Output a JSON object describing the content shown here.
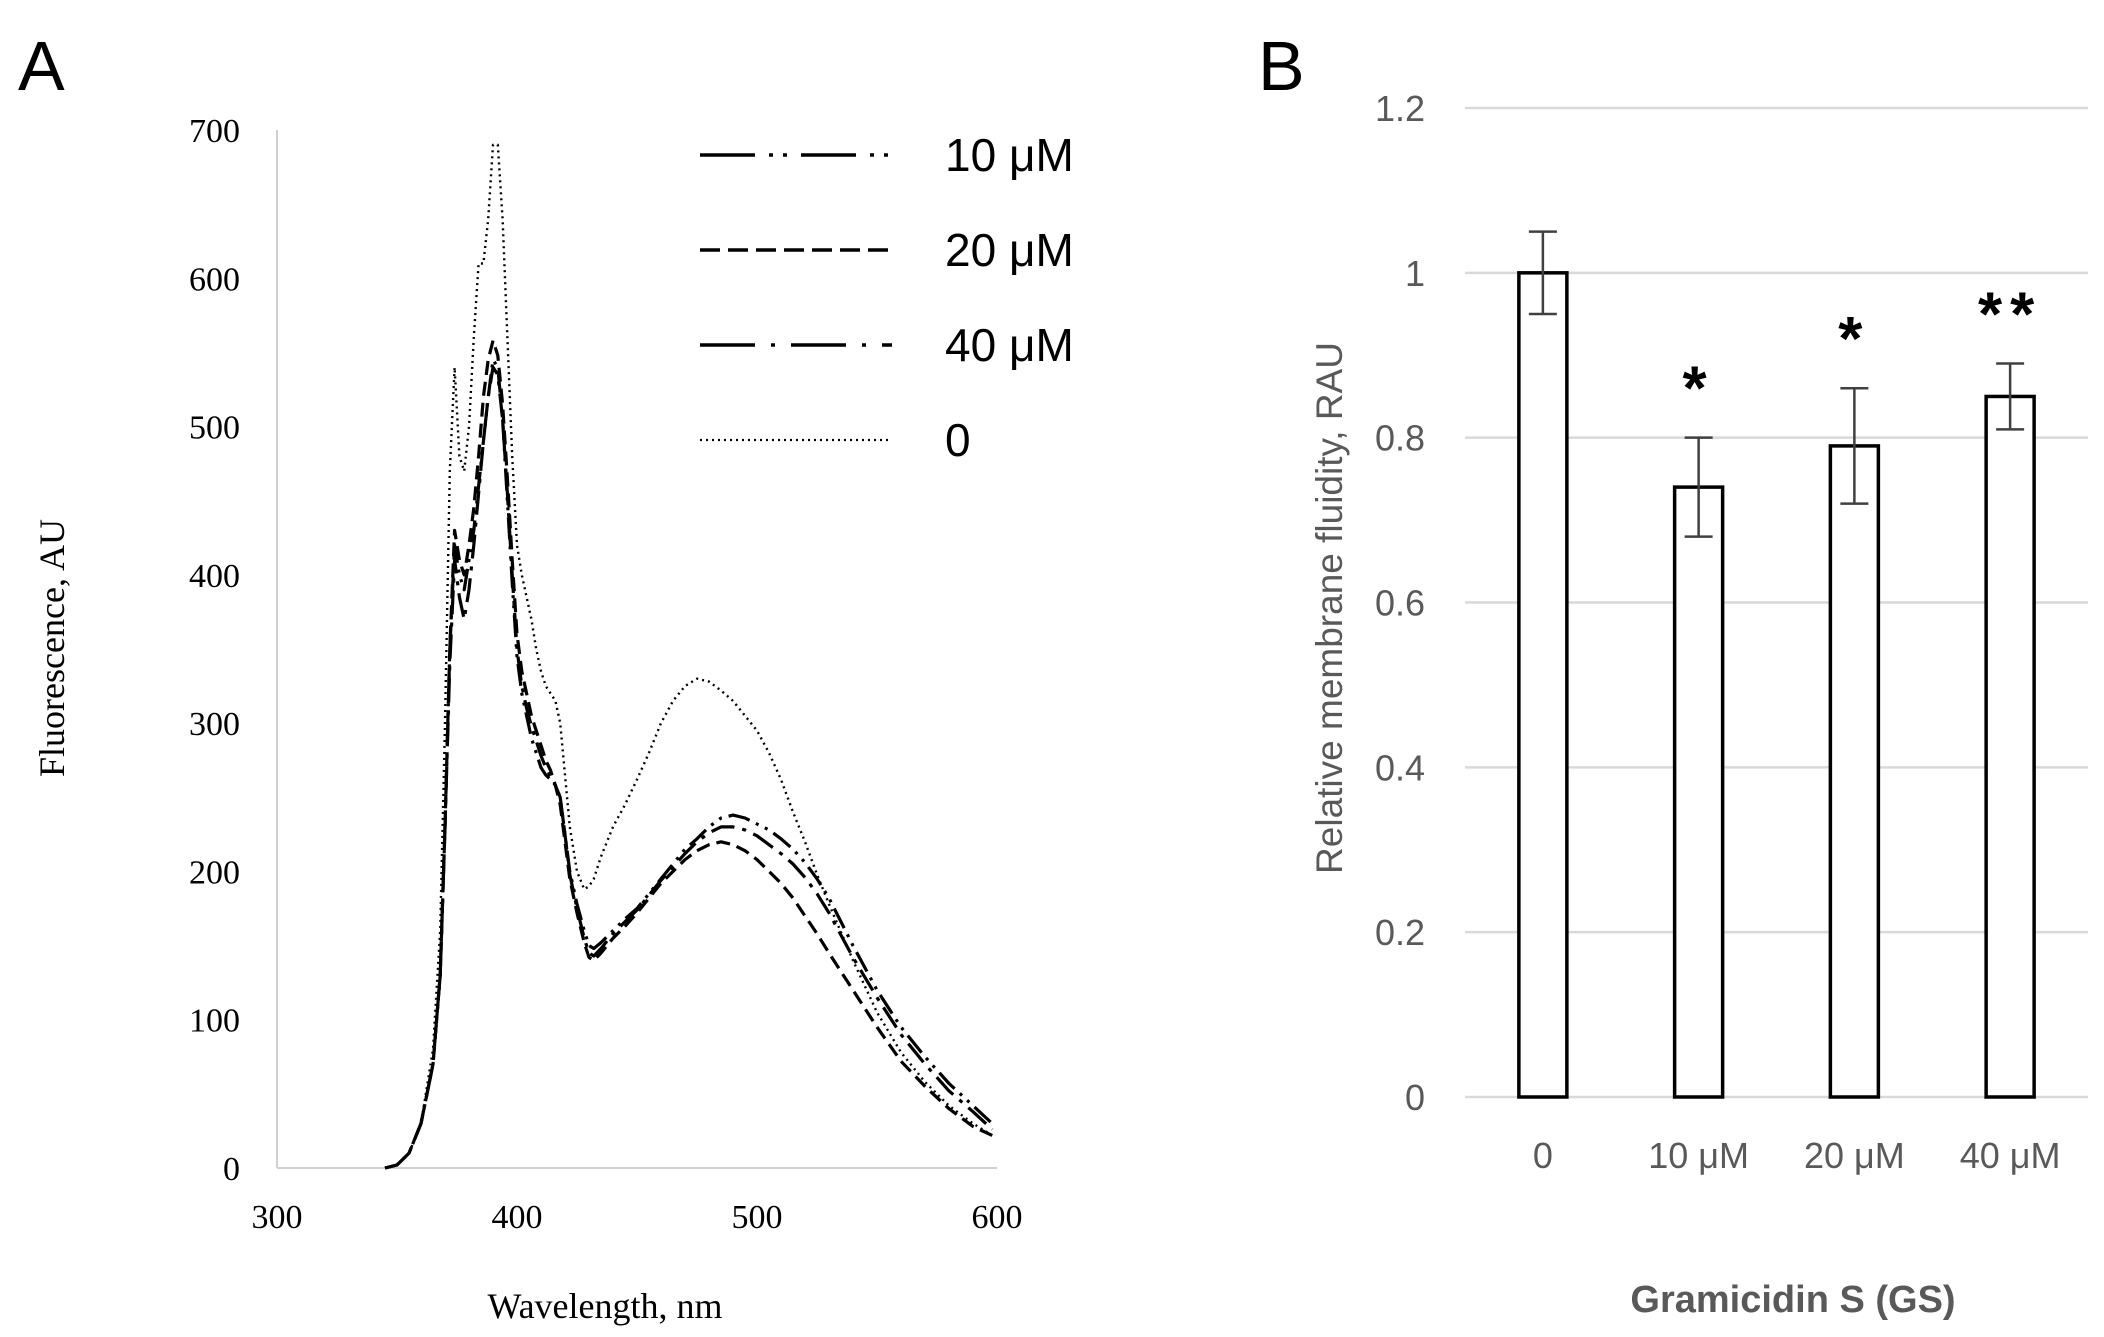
{
  "chart_data": [
    {
      "panel": "A",
      "type": "line",
      "xlabel": "Wavelength,  nm",
      "ylabel": "Fluorescence, AU",
      "xlim": [
        300,
        600
      ],
      "ylim": [
        0,
        700
      ],
      "xticks": [
        "300",
        "400",
        "500",
        "600"
      ],
      "yticks": [
        "0",
        "100",
        "200",
        "300",
        "400",
        "500",
        "600",
        "700"
      ],
      "grid": false,
      "legend_position": "top-right",
      "series": [
        {
          "name": "10 μM",
          "style": "dash-dot-dot",
          "x": [
            345,
            350,
            355,
            360,
            365,
            368,
            370,
            372,
            374,
            376,
            378,
            380,
            382,
            384,
            386,
            388,
            390,
            392,
            394,
            396,
            398,
            400,
            402,
            404,
            406,
            408,
            410,
            412,
            414,
            416,
            418,
            420,
            422,
            425,
            428,
            430,
            432,
            435,
            440,
            445,
            450,
            455,
            460,
            465,
            470,
            475,
            480,
            485,
            490,
            495,
            500,
            505,
            510,
            515,
            520,
            525,
            530,
            540,
            550,
            560,
            570,
            580,
            590,
            598
          ],
          "y": [
            0,
            2,
            10,
            30,
            70,
            130,
            230,
            350,
            420,
            400,
            390,
            410,
            430,
            460,
            490,
            520,
            545,
            540,
            505,
            450,
            395,
            345,
            320,
            305,
            290,
            280,
            270,
            265,
            262,
            258,
            250,
            225,
            200,
            178,
            160,
            150,
            148,
            152,
            160,
            168,
            175,
            185,
            195,
            205,
            215,
            222,
            230,
            236,
            238,
            236,
            232,
            228,
            222,
            215,
            206,
            195,
            182,
            150,
            120,
            95,
            75,
            57,
            42,
            30
          ]
        },
        {
          "name": "20 μM",
          "style": "dashed",
          "x": [
            345,
            350,
            355,
            360,
            365,
            368,
            370,
            372,
            374,
            376,
            378,
            380,
            382,
            384,
            386,
            388,
            390,
            392,
            394,
            396,
            398,
            400,
            402,
            404,
            406,
            408,
            410,
            412,
            414,
            416,
            418,
            420,
            422,
            425,
            428,
            430,
            432,
            435,
            440,
            445,
            450,
            455,
            460,
            465,
            470,
            475,
            480,
            485,
            490,
            495,
            500,
            505,
            510,
            515,
            520,
            525,
            530,
            540,
            550,
            560,
            570,
            580,
            590,
            598
          ],
          "y": [
            0,
            2,
            10,
            30,
            70,
            130,
            230,
            350,
            430,
            410,
            400,
            420,
            445,
            480,
            520,
            545,
            558,
            548,
            515,
            465,
            410,
            360,
            335,
            320,
            305,
            295,
            285,
            275,
            268,
            258,
            245,
            220,
            195,
            172,
            152,
            142,
            140,
            145,
            155,
            163,
            172,
            182,
            192,
            200,
            208,
            214,
            218,
            220,
            218,
            214,
            208,
            200,
            192,
            182,
            170,
            158,
            145,
            120,
            95,
            72,
            55,
            40,
            28,
            22
          ]
        },
        {
          "name": "40 μM",
          "style": "dash-dot",
          "x": [
            345,
            350,
            355,
            360,
            365,
            368,
            370,
            372,
            374,
            376,
            378,
            380,
            382,
            384,
            386,
            388,
            390,
            392,
            394,
            396,
            398,
            400,
            402,
            404,
            406,
            408,
            410,
            412,
            414,
            416,
            418,
            420,
            422,
            425,
            428,
            430,
            432,
            435,
            440,
            445,
            450,
            455,
            460,
            465,
            470,
            475,
            480,
            485,
            490,
            495,
            500,
            505,
            510,
            515,
            520,
            525,
            530,
            540,
            550,
            560,
            570,
            580,
            590,
            598
          ],
          "y": [
            0,
            2,
            10,
            30,
            70,
            130,
            230,
            340,
            410,
            385,
            370,
            390,
            420,
            455,
            490,
            520,
            540,
            535,
            505,
            455,
            400,
            350,
            325,
            310,
            298,
            288,
            278,
            270,
            264,
            258,
            250,
            225,
            198,
            175,
            155,
            145,
            143,
            148,
            158,
            166,
            174,
            184,
            194,
            203,
            212,
            220,
            226,
            230,
            230,
            228,
            224,
            218,
            212,
            205,
            196,
            185,
            172,
            142,
            115,
            90,
            70,
            52,
            38,
            26
          ]
        },
        {
          "name": "0",
          "style": "dotted",
          "x": [
            345,
            350,
            355,
            360,
            365,
            368,
            370,
            372,
            374,
            376,
            378,
            380,
            382,
            384,
            386,
            388,
            390,
            392,
            394,
            396,
            398,
            400,
            402,
            404,
            406,
            408,
            410,
            412,
            414,
            416,
            418,
            420,
            422,
            425,
            428,
            430,
            432,
            435,
            440,
            445,
            450,
            455,
            460,
            465,
            470,
            475,
            480,
            485,
            490,
            495,
            500,
            505,
            510,
            515,
            520,
            525,
            530,
            540,
            550,
            560,
            570,
            580,
            590,
            598
          ],
          "y": [
            0,
            2,
            10,
            30,
            80,
            160,
            300,
            470,
            540,
            480,
            470,
            500,
            560,
            610,
            610,
            640,
            690,
            690,
            640,
            560,
            480,
            420,
            400,
            385,
            370,
            350,
            335,
            325,
            320,
            315,
            300,
            265,
            230,
            200,
            188,
            190,
            195,
            210,
            230,
            245,
            262,
            280,
            300,
            315,
            325,
            330,
            328,
            322,
            315,
            305,
            295,
            280,
            262,
            240,
            220,
            198,
            178,
            140,
            105,
            78,
            58,
            42,
            30,
            22
          ]
        }
      ],
      "legend": [
        "10 μM",
        "20 μM",
        "40 μM",
        "0"
      ]
    },
    {
      "panel": "B",
      "type": "bar",
      "xlabel": "Gramicidin S (GS)",
      "ylabel": "Relative membrane fluidity, RAU",
      "ylim": [
        0,
        1.2
      ],
      "yticks": [
        "0",
        "0.2",
        "0.4",
        "0.6",
        "0.8",
        "1",
        "1.2"
      ],
      "grid": true,
      "categories": [
        "0",
        "10 μM",
        "20 μM",
        "40 μM"
      ],
      "values": [
        1.0,
        0.74,
        0.79,
        0.85
      ],
      "errors": [
        0.05,
        0.06,
        0.07,
        0.04
      ],
      "significance": [
        "",
        "*",
        "*",
        "**"
      ]
    }
  ],
  "panel_letters": [
    "A",
    "B"
  ]
}
